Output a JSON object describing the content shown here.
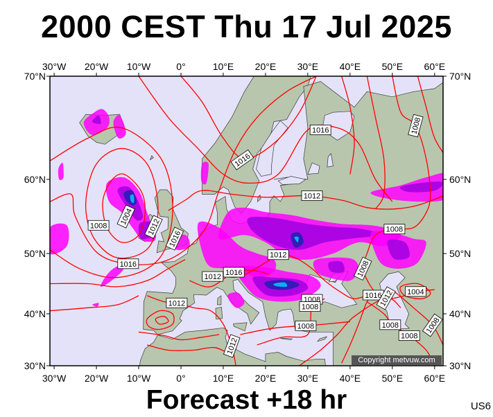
{
  "title": "2000 CEST Thu 17 Jul 2025",
  "subtitle": "Forecast +18 hr",
  "corner_code": "US6",
  "copyright": "Copyright metvuw.com",
  "axis": {
    "top_ticks": [
      "30°W",
      "20°W",
      "10°W",
      "0°",
      "10°E",
      "20°E",
      "30°E",
      "40°E",
      "50°E",
      "60°E"
    ],
    "bottom_ticks": [
      "30°W",
      "20°W",
      "10°W",
      "0°",
      "10°E",
      "20°E",
      "30°E",
      "40°E",
      "50°E",
      "60°E"
    ],
    "left_ticks": [
      "70°N",
      "60°N",
      "50°N",
      "40°N",
      "30°N"
    ],
    "right_ticks": [
      "70°N",
      "60°N",
      "50°N",
      "40°N",
      "30°N"
    ]
  },
  "isobar_labels": [
    {
      "text": "1016",
      "lon": 33,
      "lat": 64.8
    },
    {
      "text": "1008",
      "lon": 55.5,
      "lat": 65.2,
      "rotate": -75
    },
    {
      "text": "1016",
      "lon": 14.5,
      "lat": 61.9,
      "rotate": -35
    },
    {
      "text": "1012",
      "lon": 31,
      "lat": 57.8
    },
    {
      "text": "1004",
      "lon": -13,
      "lat": 55,
      "rotate": -65
    },
    {
      "text": "1012",
      "lon": -6.5,
      "lat": 53.6,
      "rotate": -65
    },
    {
      "text": "1008",
      "lon": -19.5,
      "lat": 53.8
    },
    {
      "text": "1016",
      "lon": -1.5,
      "lat": 52,
      "rotate": -65
    },
    {
      "text": "1008",
      "lon": 50.5,
      "lat": 53.3
    },
    {
      "text": "1012",
      "lon": 23,
      "lat": 49.8
    },
    {
      "text": "1016",
      "lon": -12.5,
      "lat": 48.3
    },
    {
      "text": "1008",
      "lon": 43,
      "lat": 47.5,
      "rotate": -65
    },
    {
      "text": "1016",
      "lon": 12.5,
      "lat": 46.9
    },
    {
      "text": "1012",
      "lon": 7.5,
      "lat": 46.2
    },
    {
      "text": "1004",
      "lon": 55.5,
      "lat": 43.7
    },
    {
      "text": "1016",
      "lon": 45.5,
      "lat": 43.1
    },
    {
      "text": "1012",
      "lon": 48.5,
      "lat": 42.6,
      "rotate": -60
    },
    {
      "text": "1008",
      "lon": 31,
      "lat": 42.4
    },
    {
      "text": "1012",
      "lon": -1,
      "lat": 41.8
    },
    {
      "text": "1008",
      "lon": 30.5,
      "lat": 41.2
    },
    {
      "text": "1008",
      "lon": 59.5,
      "lat": 37.8,
      "rotate": -55
    },
    {
      "text": "1008",
      "lon": 49.5,
      "lat": 37.9
    },
    {
      "text": "1008",
      "lon": 29.5,
      "lat": 37.7
    },
    {
      "text": "1012",
      "lon": 12,
      "lat": 33.8,
      "rotate": -70
    },
    {
      "text": "1008",
      "lon": 54,
      "lat": 35.8
    }
  ],
  "colors": {
    "sea": "#e4e2f8",
    "land": "#b8c6ad",
    "isobar": "#ff0000",
    "rain_light": "#ff00ff",
    "rain_mid": "#a000e0",
    "rain_heavy": "#2020b0",
    "rain_core": "#00c8ff"
  }
}
